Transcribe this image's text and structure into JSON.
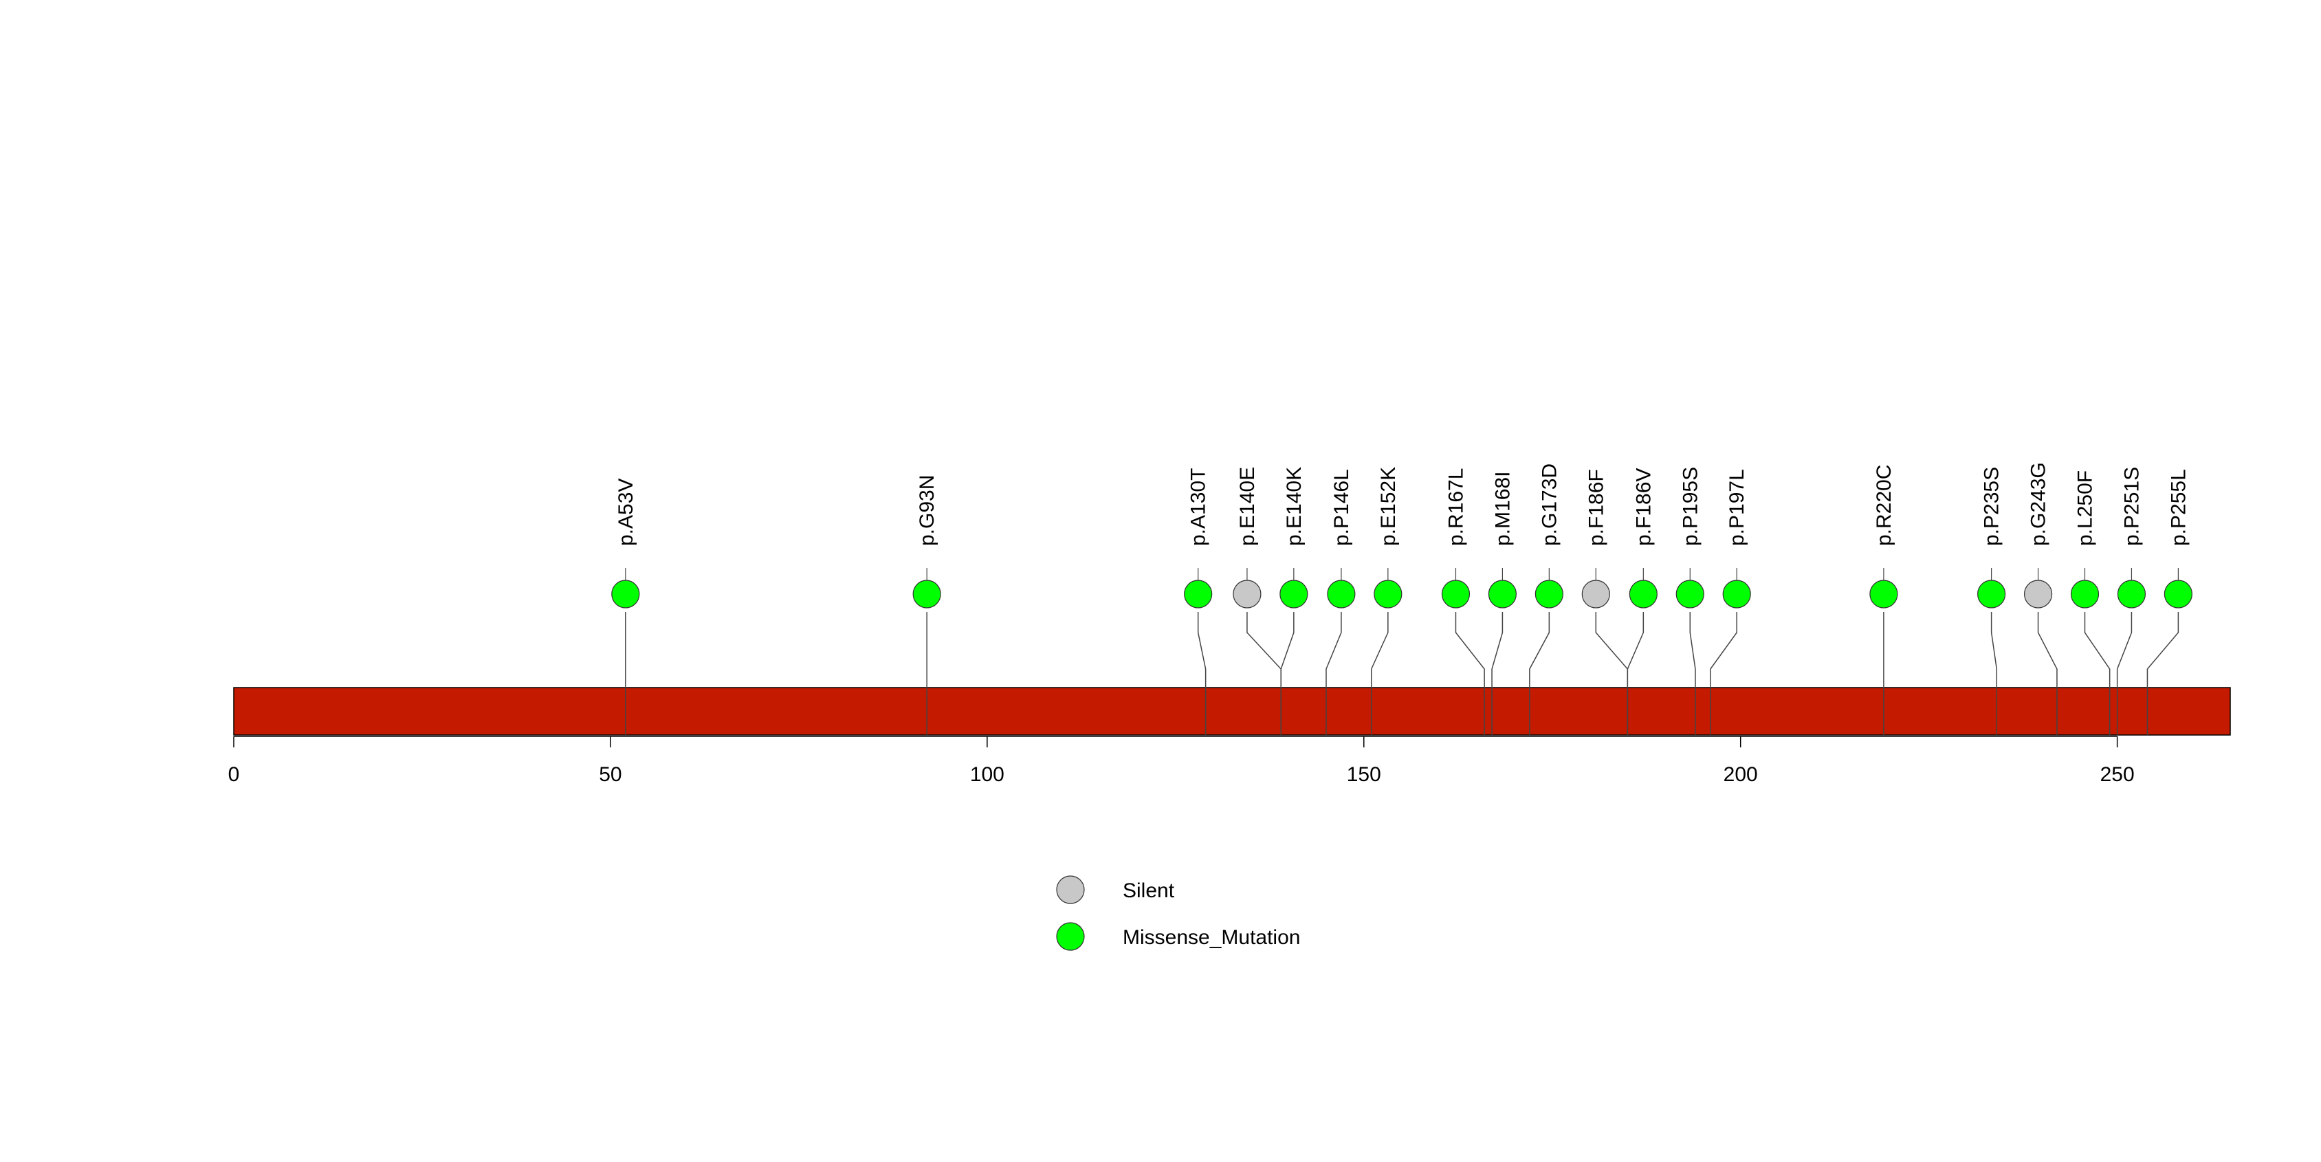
{
  "chart_data": {
    "type": "lollipop",
    "protein_length": 265,
    "xlim": [
      0,
      265
    ],
    "axis_ticks": [
      0,
      50,
      100,
      150,
      200,
      250
    ],
    "bar_color": "#c41a00",
    "colors": {
      "Silent": "#c8c8c8",
      "Missense_Mutation": "#00ff00"
    },
    "legend": [
      {
        "type": "Silent",
        "label": "Silent"
      },
      {
        "type": "Missense_Mutation",
        "label": "Missense_Mutation"
      }
    ],
    "mutations": [
      {
        "label": "p.A53V",
        "position": 52,
        "display_position": 52,
        "type": "Missense_Mutation"
      },
      {
        "label": "p.G93N",
        "position": 92,
        "display_position": 92,
        "type": "Missense_Mutation"
      },
      {
        "label": "p.A130T",
        "position": 129,
        "display_position": 128,
        "type": "Missense_Mutation"
      },
      {
        "label": "p.E140E",
        "position": 139,
        "display_position": 134.5,
        "type": "Silent"
      },
      {
        "label": "p.E140K",
        "position": 139,
        "display_position": 140.7,
        "type": "Missense_Mutation"
      },
      {
        "label": "p.P146L",
        "position": 145,
        "display_position": 147,
        "type": "Missense_Mutation"
      },
      {
        "label": "p.E152K",
        "position": 151,
        "display_position": 153.2,
        "type": "Missense_Mutation"
      },
      {
        "label": "p.R167L",
        "position": 166,
        "display_position": 162.2,
        "type": "Missense_Mutation"
      },
      {
        "label": "p.M168I",
        "position": 167,
        "display_position": 168.4,
        "type": "Missense_Mutation"
      },
      {
        "label": "p.G173D",
        "position": 172,
        "display_position": 174.6,
        "type": "Missense_Mutation"
      },
      {
        "label": "p.F186F",
        "position": 185,
        "display_position": 180.8,
        "type": "Silent"
      },
      {
        "label": "p.F186V",
        "position": 185,
        "display_position": 187.1,
        "type": "Missense_Mutation"
      },
      {
        "label": "p.P195S",
        "position": 194,
        "display_position": 193.3,
        "type": "Missense_Mutation"
      },
      {
        "label": "p.P197L",
        "position": 196,
        "display_position": 199.5,
        "type": "Missense_Mutation"
      },
      {
        "label": "p.R220C",
        "position": 219,
        "display_position": 219,
        "type": "Missense_Mutation"
      },
      {
        "label": "p.P235S",
        "position": 234,
        "display_position": 233.3,
        "type": "Missense_Mutation"
      },
      {
        "label": "p.G243G",
        "position": 242,
        "display_position": 239.5,
        "type": "Silent"
      },
      {
        "label": "p.L250F",
        "position": 249,
        "display_position": 245.7,
        "type": "Missense_Mutation"
      },
      {
        "label": "p.P251S",
        "position": 250,
        "display_position": 251.9,
        "type": "Missense_Mutation"
      },
      {
        "label": "p.P255L",
        "position": 254,
        "display_position": 258.1,
        "type": "Missense_Mutation"
      }
    ]
  }
}
